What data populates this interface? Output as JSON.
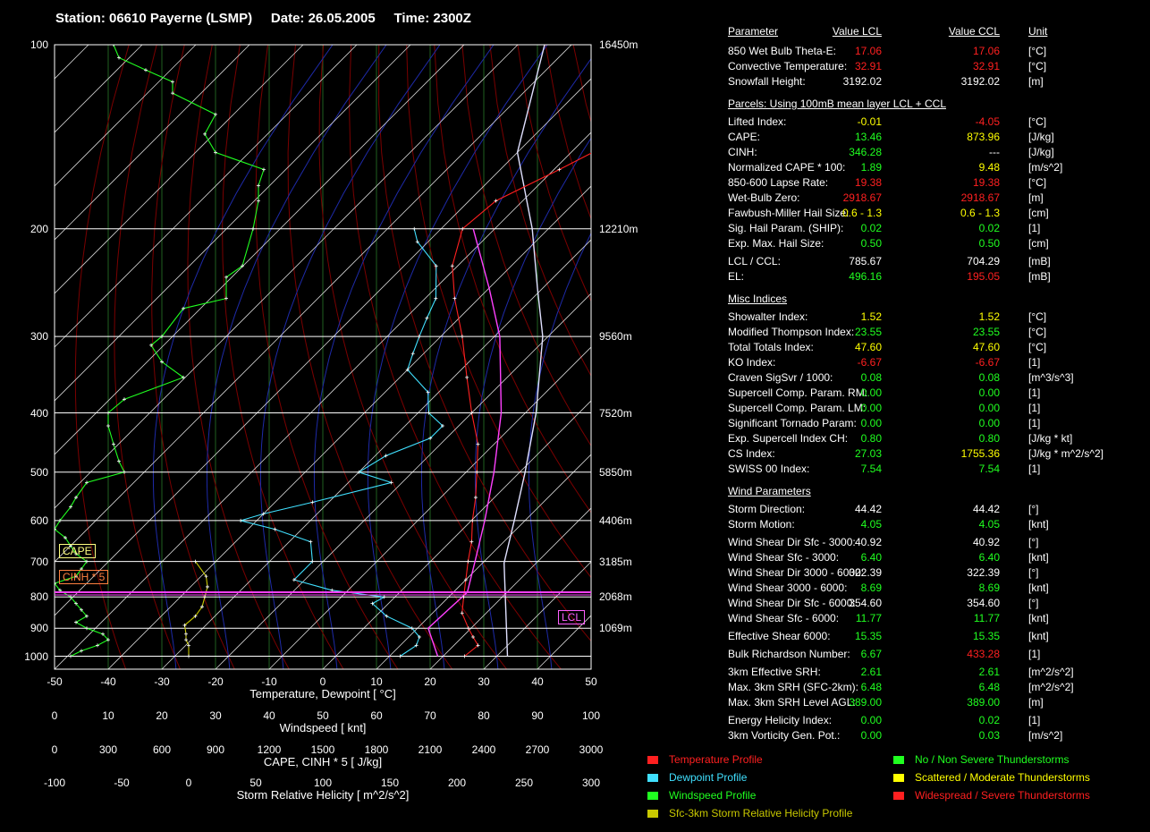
{
  "title": "Station: 06610 Payerne (LSMP)     Date: 26.05.2005     Time: 2300Z",
  "chart_data": {
    "type": "line",
    "title": "Station: 06610 Payerne (LSMP)     Date: 26.05.2005     Time: 2300Z",
    "y_scale": "log-pressure",
    "pressure_ticks": [
      100,
      200,
      300,
      400,
      500,
      600,
      700,
      800,
      900,
      1000
    ],
    "height_labels": [
      {
        "p": 100,
        "label": "16450m"
      },
      {
        "p": 200,
        "label": "12210m"
      },
      {
        "p": 300,
        "label": "9560m"
      },
      {
        "p": 400,
        "label": "7520m"
      },
      {
        "p": 500,
        "label": "5850m"
      },
      {
        "p": 600,
        "label": "4406m"
      },
      {
        "p": 700,
        "label": "3185m"
      },
      {
        "p": 800,
        "label": "2068m"
      },
      {
        "p": 900,
        "label": "1069m"
      }
    ],
    "axes": {
      "temperature": {
        "label": "Temperature, Dewpoint  [ °C]",
        "ticks": [
          "-50",
          "-40",
          "-30",
          "-20",
          "-10",
          "0",
          "10",
          "20",
          "30",
          "40",
          "50"
        ],
        "range": [
          -50,
          50
        ]
      },
      "windspeed": {
        "label": "Windspeed  [ knt]",
        "ticks": [
          "0",
          "10",
          "20",
          "30",
          "40",
          "50",
          "60",
          "70",
          "80",
          "90",
          "100"
        ],
        "range": [
          0,
          100
        ]
      },
      "cape": {
        "label": "CAPE, CINH * 5  [ J/kg]",
        "ticks": [
          "0",
          "300",
          "600",
          "900",
          "1200",
          "1500",
          "1800",
          "2100",
          "2400",
          "2700",
          "3000"
        ],
        "range": [
          0,
          3000
        ]
      },
      "srh": {
        "label": "Storm Relative Helicity  [ m^2/s^2]",
        "ticks": [
          "-100",
          "-50",
          "0",
          "50",
          "100",
          "150",
          "200",
          "250",
          "300"
        ],
        "range": [
          -100,
          300
        ]
      }
    },
    "series": [
      {
        "name": "Temperature Profile",
        "color": "#ff2020",
        "x_unit": "degC",
        "points": [
          [
            1000,
            24
          ],
          [
            960,
            24.5
          ],
          [
            930,
            22
          ],
          [
            900,
            19.5
          ],
          [
            850,
            15.5
          ],
          [
            800,
            12.8
          ],
          [
            750,
            10
          ],
          [
            700,
            7
          ],
          [
            650,
            4
          ],
          [
            600,
            0.2
          ],
          [
            550,
            -3.5
          ],
          [
            500,
            -8
          ],
          [
            450,
            -13
          ],
          [
            400,
            -20
          ],
          [
            350,
            -27.5
          ],
          [
            300,
            -36
          ],
          [
            260,
            -44.5
          ],
          [
            230,
            -51
          ],
          [
            200,
            -56
          ],
          [
            180,
            -55
          ],
          [
            160,
            -49
          ],
          [
            150,
            -46
          ],
          [
            140,
            -42
          ],
          [
            130,
            -35
          ],
          [
            120,
            -33
          ],
          [
            110,
            -25
          ],
          [
            105,
            -21
          ]
        ]
      },
      {
        "name": "Dewpoint Profile",
        "color": "#40e0ff",
        "x_unit": "degC",
        "points": [
          [
            1000,
            12
          ],
          [
            960,
            13
          ],
          [
            930,
            12
          ],
          [
            900,
            9
          ],
          [
            860,
            2
          ],
          [
            820,
            -3
          ],
          [
            800,
            -2
          ],
          [
            780,
            -13
          ],
          [
            750,
            -22
          ],
          [
            700,
            -22
          ],
          [
            650,
            -26
          ],
          [
            620,
            -35
          ],
          [
            600,
            -43
          ],
          [
            585,
            -40
          ],
          [
            560,
            -33
          ],
          [
            520,
            -22
          ],
          [
            500,
            -30
          ],
          [
            470,
            -28
          ],
          [
            440,
            -23
          ],
          [
            420,
            -23
          ],
          [
            400,
            -28
          ],
          [
            370,
            -32
          ],
          [
            340,
            -40
          ],
          [
            320,
            -42
          ],
          [
            300,
            -44
          ],
          [
            280,
            -46
          ],
          [
            260,
            -48
          ],
          [
            230,
            -54
          ],
          [
            210,
            -62
          ],
          [
            200,
            -65
          ]
        ]
      },
      {
        "name": "Windspeed Profile",
        "color": "#20ff20",
        "x_unit": "knt",
        "points": [
          [
            1000,
            3
          ],
          [
            980,
            5
          ],
          [
            960,
            8
          ],
          [
            940,
            10
          ],
          [
            920,
            9
          ],
          [
            900,
            6
          ],
          [
            880,
            4
          ],
          [
            860,
            6
          ],
          [
            840,
            5
          ],
          [
            820,
            4
          ],
          [
            800,
            3
          ],
          [
            780,
            1
          ],
          [
            760,
            0
          ],
          [
            740,
            4
          ],
          [
            720,
            5
          ],
          [
            700,
            6
          ],
          [
            680,
            4
          ],
          [
            660,
            3
          ],
          [
            640,
            2
          ],
          [
            620,
            0
          ],
          [
            600,
            1
          ],
          [
            570,
            3
          ],
          [
            550,
            4
          ],
          [
            520,
            6
          ],
          [
            500,
            13
          ],
          [
            480,
            12
          ],
          [
            450,
            11
          ],
          [
            420,
            10
          ],
          [
            400,
            10
          ],
          [
            380,
            13
          ],
          [
            350,
            24
          ],
          [
            330,
            20
          ],
          [
            310,
            18
          ],
          [
            300,
            20
          ],
          [
            270,
            24
          ],
          [
            260,
            32
          ],
          [
            240,
            32
          ],
          [
            230,
            35
          ],
          [
            200,
            37
          ],
          [
            180,
            38
          ],
          [
            170,
            38
          ],
          [
            160,
            39
          ],
          [
            150,
            30
          ],
          [
            140,
            28
          ],
          [
            130,
            30
          ],
          [
            120,
            22
          ],
          [
            115,
            22
          ],
          [
            110,
            17
          ],
          [
            105,
            12
          ],
          [
            100,
            11
          ]
        ]
      },
      {
        "name": "Sfc-3km Storm Relative Helicity Profile",
        "color": "#c8c800",
        "x_unit": "m^2/s^2",
        "points": [
          [
            1000,
            0
          ],
          [
            960,
            0
          ],
          [
            940,
            -2
          ],
          [
            920,
            -2
          ],
          [
            890,
            -3
          ],
          [
            860,
            5
          ],
          [
            830,
            10
          ],
          [
            800,
            12
          ],
          [
            770,
            14
          ],
          [
            740,
            13
          ],
          [
            700,
            5
          ]
        ]
      }
    ],
    "parcel_curves": [
      {
        "name": "LCL parcel",
        "color": "#ff40ff",
        "points": [
          [
            1000,
            19
          ],
          [
            900,
            12
          ],
          [
            786,
            12.6
          ],
          [
            700,
            8.3
          ],
          [
            600,
            2.5
          ],
          [
            500,
            -4.8
          ],
          [
            400,
            -14.5
          ],
          [
            300,
            -29
          ],
          [
            250,
            -40
          ],
          [
            200,
            -54
          ]
        ]
      },
      {
        "name": "CCL parcel",
        "color": "#e0e0ff",
        "points": [
          [
            1000,
            32
          ],
          [
            704,
            14
          ],
          [
            600,
            8
          ],
          [
            500,
            1
          ],
          [
            400,
            -8
          ],
          [
            300,
            -21
          ],
          [
            250,
            -31
          ],
          [
            200,
            -43
          ],
          [
            150,
            -60
          ],
          [
            100,
            -75
          ]
        ]
      }
    ],
    "markers": {
      "lcl_label": "LCL",
      "lcl_pressure": 786,
      "cape_label": "CAPE",
      "cinh_label": "CINH * 5"
    },
    "grid": true
  },
  "params": {
    "columns": {
      "name": "Parameter",
      "lcl": "Value LCL",
      "ccl": "Value CCL",
      "unit": "Unit"
    },
    "sections": [
      {
        "heading": null,
        "rows": [
          [
            "850 Wet Bulb Theta-E:",
            "17.06",
            "17.06",
            "[°C]",
            "#ff2020",
            "#ff2020"
          ],
          [
            "Convective Temperature:",
            "32.91",
            "32.91",
            "[°C]",
            "#ff2020",
            "#ff2020"
          ],
          [
            "Snowfall Height:",
            "3192.02",
            "3192.02",
            "[m]",
            "#ffffff",
            "#ffffff"
          ]
        ]
      },
      {
        "heading": "Parcels: Using 100mB mean layer LCL + CCL",
        "rows": [
          [
            "Lifted Index:",
            "-0.01",
            "-4.05",
            "[°C]",
            "#ffff00",
            "#ff2020"
          ],
          [
            "CAPE:",
            "13.46",
            "873.96",
            "[J/kg]",
            "#20ff20",
            "#ffff00"
          ],
          [
            "CINH:",
            "346.28",
            "---",
            "[J/kg]",
            "#20ff20",
            "#ffffff"
          ],
          [
            "Normalized CAPE * 100:",
            "1.89",
            "9.48",
            "[m/s^2]",
            "#20ff20",
            "#ffff00"
          ],
          [
            "850-600 Lapse Rate:",
            "19.38",
            "19.38",
            "[°C]",
            "#ff2020",
            "#ff2020"
          ],
          [
            "Wet-Bulb Zero:",
            "2918.67",
            "2918.67",
            "[m]",
            "#ff2020",
            "#ff2020"
          ],
          [
            "Fawbush-Miller Hail Size:",
            "0.6 - 1.3",
            "0.6 - 1.3",
            "[cm]",
            "#ffff00",
            "#ffff00"
          ],
          [
            "Sig. Hail Param. (SHIP):",
            "0.02",
            "0.02",
            "[1]",
            "#20ff20",
            "#20ff20"
          ],
          [
            "Exp. Max. Hail Size:",
            "0.50",
            "0.50",
            "[cm]",
            "#20ff20",
            "#20ff20"
          ],
          [
            "LCL / CCL:",
            "785.67",
            "704.29",
            "[mB]",
            "#ffffff",
            "#ffffff"
          ],
          [
            "EL:",
            "496.16",
            "195.05",
            "[mB]",
            "#20ff20",
            "#ff2020"
          ]
        ]
      },
      {
        "heading": "Misc Indices",
        "rows": [
          [
            "Showalter Index:",
            "1.52",
            "1.52",
            "[°C]",
            "#ffff00",
            "#ffff00"
          ],
          [
            "Modified Thompson Index:",
            "23.55",
            "23.55",
            "[°C]",
            "#20ff20",
            "#20ff20"
          ],
          [
            "Total Totals Index:",
            "47.60",
            "47.60",
            "[°C]",
            "#ffff00",
            "#ffff00"
          ],
          [
            "KO Index:",
            "-6.67",
            "-6.67",
            "[1]",
            "#ff2020",
            "#ff2020"
          ],
          [
            "Craven SigSvr / 1000:",
            "0.08",
            "0.08",
            "[m^3/s^3]",
            "#20ff20",
            "#20ff20"
          ],
          [
            "Supercell Comp. Param. RM:",
            "0.00",
            "0.00",
            "[1]",
            "#20ff20",
            "#20ff20"
          ],
          [
            "Supercell Comp. Param. LM:",
            "0.00",
            "0.00",
            "[1]",
            "#20ff20",
            "#20ff20"
          ],
          [
            "Significant Tornado Param:",
            "0.00",
            "0.00",
            "[1]",
            "#20ff20",
            "#20ff20"
          ],
          [
            "Exp. Supercell Index CH:",
            "0.80",
            "0.80",
            "[J/kg * kt]",
            "#20ff20",
            "#20ff20"
          ],
          [
            "CS Index:",
            "27.03",
            "1755.36",
            "[J/kg * m^2/s^2]",
            "#20ff20",
            "#ffff00"
          ],
          [
            "SWISS 00 Index:",
            "7.54",
            "7.54",
            "[1]",
            "#20ff20",
            "#20ff20"
          ]
        ]
      },
      {
        "heading": "Wind Parameters",
        "rows": [
          [
            "Storm Direction:",
            "44.42",
            "44.42",
            "[°]",
            "#ffffff",
            "#ffffff"
          ],
          [
            "Storm Motion:",
            "4.05",
            "4.05",
            "[knt]",
            "#20ff20",
            "#20ff20"
          ],
          [
            "Wind Shear Dir Sfc - 3000:",
            "40.92",
            "40.92",
            "[°]",
            "#ffffff",
            "#ffffff"
          ],
          [
            "Wind Shear Sfc - 3000:",
            "6.40",
            "6.40",
            "[knt]",
            "#20ff20",
            "#20ff20"
          ],
          [
            "Wind Shear Dir 3000 - 6000:",
            "322.39",
            "322.39",
            "[°]",
            "#ffffff",
            "#ffffff"
          ],
          [
            "Wind Shear 3000 - 6000:",
            "8.69",
            "8.69",
            "[knt]",
            "#20ff20",
            "#20ff20"
          ],
          [
            "Wind Shear Dir Sfc - 6000:",
            "354.60",
            "354.60",
            "[°]",
            "#ffffff",
            "#ffffff"
          ],
          [
            "Wind Shear Sfc - 6000:",
            "11.77",
            "11.77",
            "[knt]",
            "#20ff20",
            "#20ff20"
          ],
          [
            "Effective Shear 6000:",
            "15.35",
            "15.35",
            "[knt]",
            "#20ff20",
            "#20ff20"
          ],
          [
            "Bulk Richardson Number:",
            "6.67",
            "433.28",
            "[1]",
            "#20ff20",
            "#ff2020"
          ],
          [
            "3km Effective SRH:",
            "2.61",
            "2.61",
            "[m^2/s^2]",
            "#20ff20",
            "#20ff20"
          ],
          [
            "Max. 3km SRH (SFC-2km):",
            "6.48",
            "6.48",
            "[m^2/s^2]",
            "#20ff20",
            "#20ff20"
          ],
          [
            "Max. 3km SRH Level AGL:",
            "389.00",
            "389.00",
            "[m]",
            "#20ff20",
            "#20ff20"
          ],
          [
            "Energy Helicity Index:",
            "0.00",
            "0.02",
            "[1]",
            "#20ff20",
            "#20ff20"
          ],
          [
            "3km Vorticity Gen. Pot.:",
            "0.00",
            "0.03",
            "[m/s^2]",
            "#20ff20",
            "#20ff20"
          ]
        ]
      }
    ]
  },
  "legend": [
    {
      "label": "Temperature Profile",
      "color": "#ff2020"
    },
    {
      "label": "Dewpoint Profile",
      "color": "#40e0ff"
    },
    {
      "label": "Windspeed Profile",
      "color": "#20ff20"
    },
    {
      "label": "Sfc-3km Storm Relative Helicity Profile",
      "color": "#c8c800"
    },
    {
      "label": "No / Non Severe Thunderstorms",
      "color": "#20ff20"
    },
    {
      "label": "Scattered / Moderate Thunderstorms",
      "color": "#ffff00"
    },
    {
      "label": "Widespread / Severe Thunderstorms",
      "color": "#ff2020"
    }
  ]
}
